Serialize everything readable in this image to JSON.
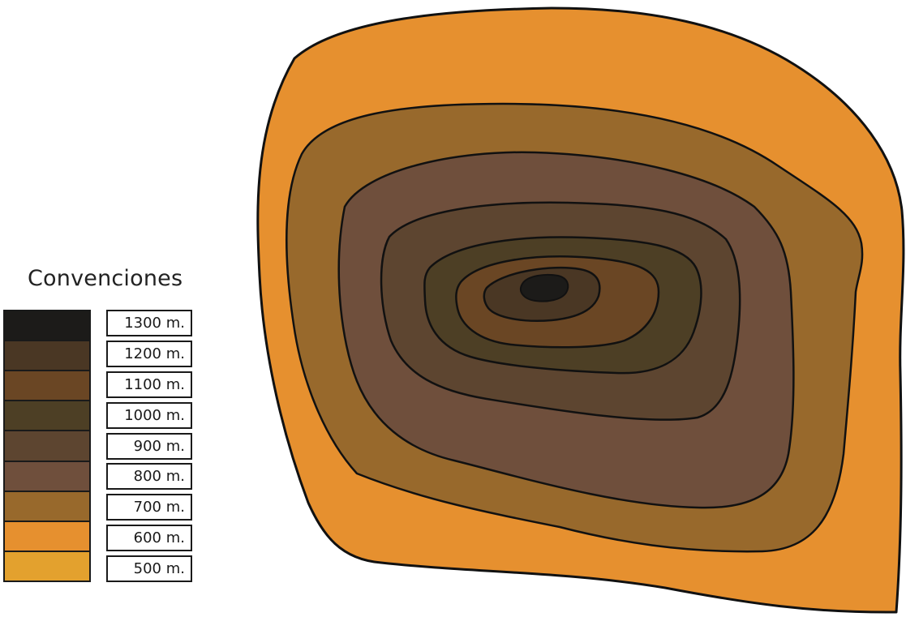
{
  "legend": {
    "title": "Convenciones",
    "items": [
      {
        "label": "1300 m.",
        "color": "#1c1b19"
      },
      {
        "label": "1200 m.",
        "color": "#4a3724"
      },
      {
        "label": "1100 m.",
        "color": "#6a4624"
      },
      {
        "label": "1000 m.",
        "color": "#4d3f25"
      },
      {
        "label": "900 m.",
        "color": "#5d4530"
      },
      {
        "label": "800 m.",
        "color": "#6f4f3c"
      },
      {
        "label": "700 m.",
        "color": "#98692c"
      },
      {
        "label": "600 m.",
        "color": "#e6902f"
      },
      {
        "label": "500 m.",
        "color": "#e3a12e"
      }
    ]
  },
  "contour_fills": {
    "600": "#e6902f",
    "700": "#98692c",
    "800": "#6f4f3c",
    "900": "#5d4530",
    "1000": "#4d3f25",
    "1100": "#6a4624",
    "1200": "#4a3724",
    "1300": "#1c1b19"
  },
  "stroke_color": "#111111"
}
